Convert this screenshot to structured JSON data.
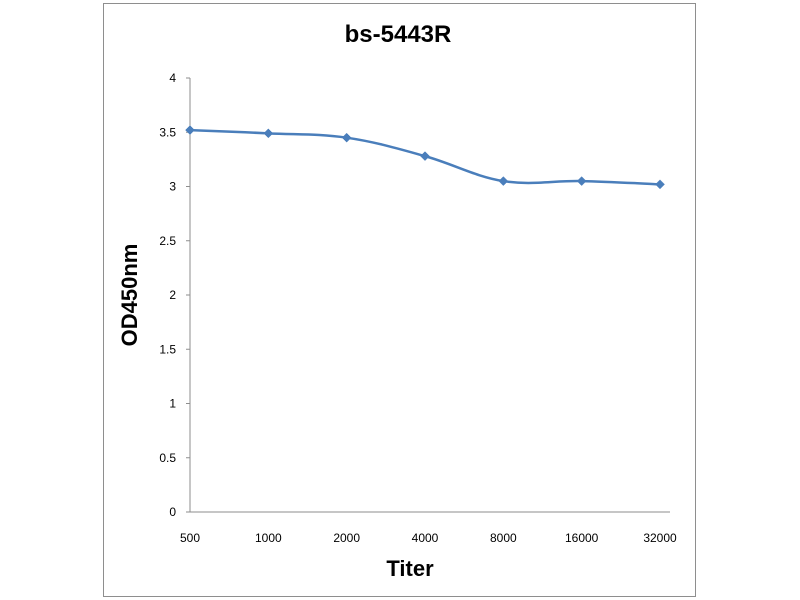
{
  "chart_data": {
    "type": "line",
    "title": "bs-5443R",
    "xlabel": "Titer",
    "ylabel": "OD450nm",
    "categories": [
      "500",
      "1000",
      "2000",
      "4000",
      "8000",
      "16000",
      "32000"
    ],
    "series": [
      {
        "values": [
          3.52,
          3.49,
          3.45,
          3.28,
          3.05,
          3.05,
          3.02
        ]
      }
    ],
    "yticks": [
      "0",
      "0.5",
      "1",
      "1.5",
      "2",
      "2.5",
      "3",
      "3.5",
      "4"
    ],
    "ylim": [
      0,
      4
    ],
    "grid": false,
    "legend": "none",
    "colors": {
      "line": "#4a7ebb",
      "axis": "#8e8e8e",
      "frame": "#8e8e8e"
    },
    "marker": "diamond"
  }
}
